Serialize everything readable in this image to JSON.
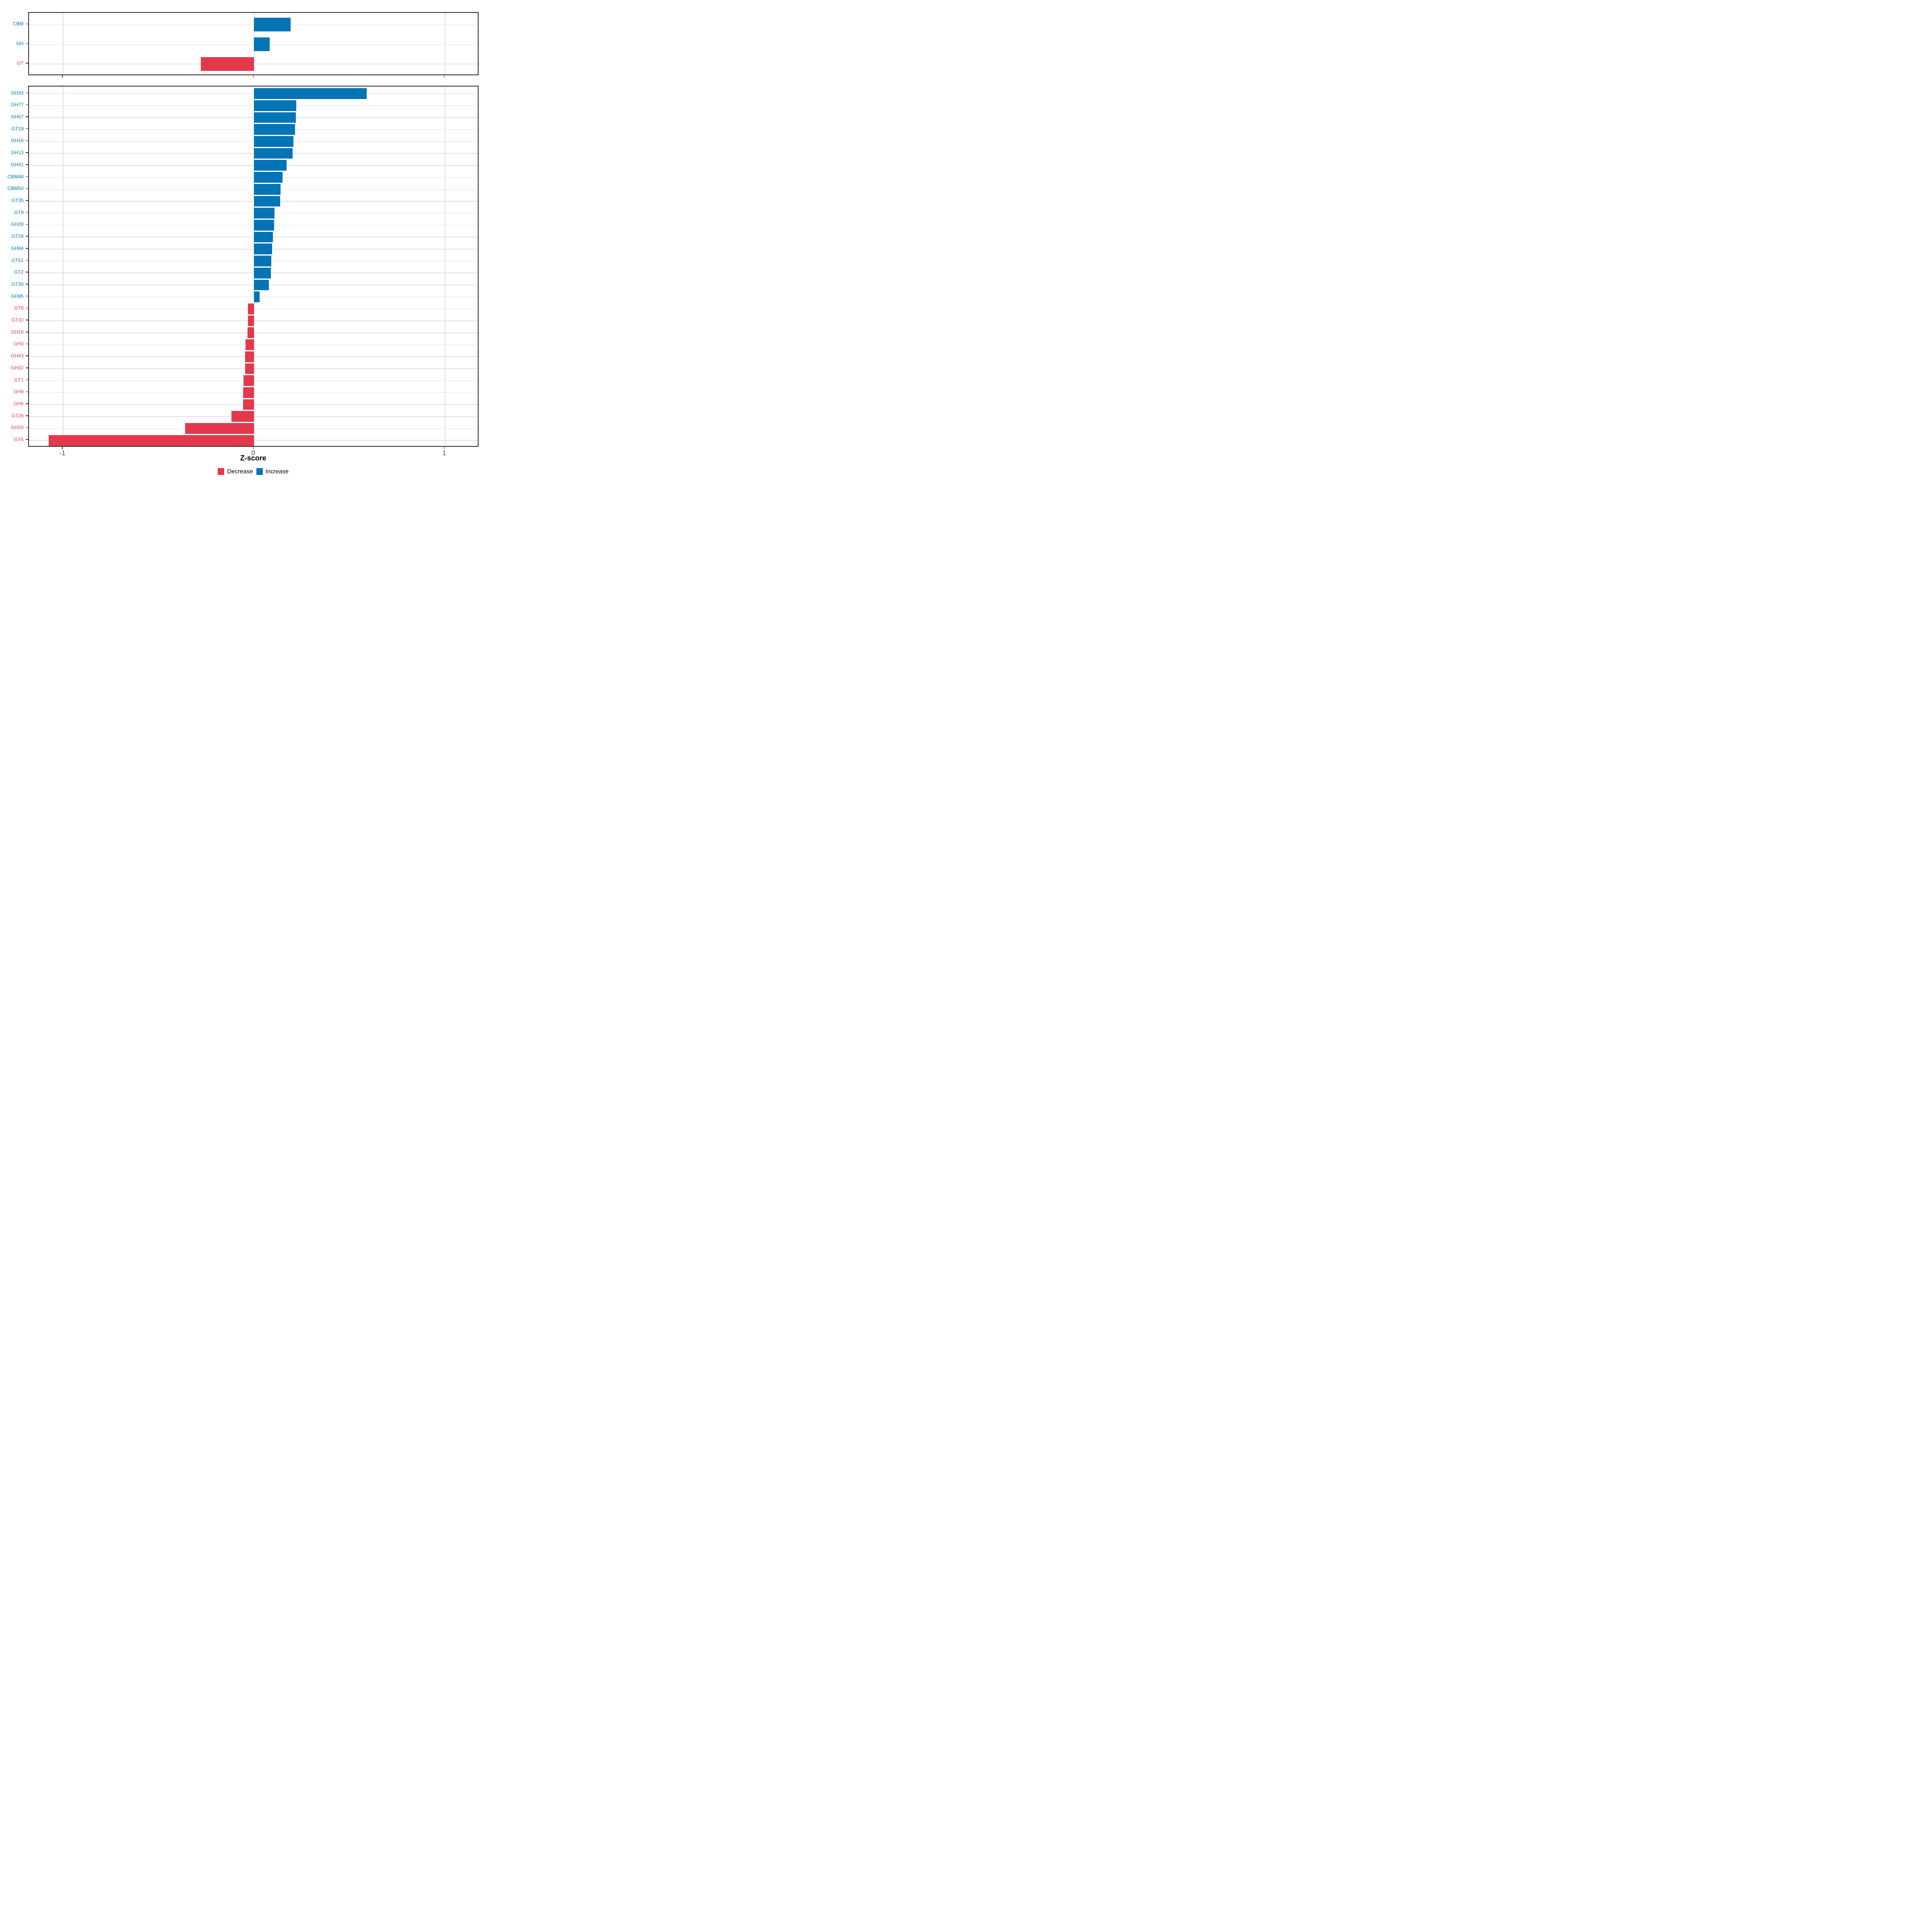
{
  "figure": {
    "background": "#FFFFFF"
  },
  "colors": {
    "increase": "#0374B5",
    "decrease": "#E5384A",
    "gridline": "#E0E0E0",
    "axis_text": "#4D4D4D",
    "axis_title": "#000000",
    "panel_border": "#2A2A2A",
    "tick": "#333333"
  },
  "axis": {
    "title": "Z-score",
    "tick_labels": [
      "-1",
      "0",
      "1"
    ],
    "tick_values": [
      -1,
      0,
      1
    ],
    "xlim": [
      -1.18,
      1.18
    ]
  },
  "legend": {
    "items": [
      {
        "label": "Decrease",
        "key": "decrease"
      },
      {
        "label": "Increase",
        "key": "increase"
      }
    ]
  },
  "chart_data": [
    {
      "type": "bar",
      "orientation": "horizontal",
      "panel": "summary",
      "title": "",
      "xlabel": "",
      "ylabel": "",
      "grid": true,
      "legend_position": "bottom",
      "xlim": [
        -1.18,
        1.18
      ],
      "xticks": [
        -1,
        0,
        1
      ],
      "categories": [
        "CBM",
        "GH",
        "GT"
      ],
      "values": [
        0.191,
        0.082,
        -0.278
      ],
      "directions": [
        "increase",
        "increase",
        "decrease"
      ]
    },
    {
      "type": "bar",
      "orientation": "horizontal",
      "panel": "families",
      "title": "",
      "xlabel": "Z-score",
      "ylabel": "",
      "grid": true,
      "legend_position": "bottom",
      "xlim": [
        -1.18,
        1.18
      ],
      "xticks": [
        -1,
        0,
        1
      ],
      "categories": [
        "GH33",
        "GH77",
        "GH57",
        "GT19",
        "GH16",
        "GH13",
        "GH31",
        "CBM48",
        "CBM50",
        "GT35",
        "GT9",
        "GH29",
        "GT28",
        "GH84",
        "GT51",
        "GT2",
        "GT30",
        "GH95",
        "GT8",
        "GT10",
        "GH18",
        "GH3",
        "GH43",
        "GH32",
        "GT1",
        "GH9",
        "GH5",
        "GT26",
        "GH20",
        "GT4"
      ],
      "values": [
        0.59,
        0.221,
        0.219,
        0.214,
        0.207,
        0.201,
        0.17,
        0.15,
        0.139,
        0.137,
        0.106,
        0.105,
        0.099,
        0.094,
        0.09,
        0.087,
        0.078,
        0.028,
        -0.033,
        -0.033,
        -0.034,
        -0.045,
        -0.047,
        -0.047,
        -0.056,
        -0.057,
        -0.058,
        -0.118,
        -0.36,
        -1.075
      ],
      "directions": [
        "increase",
        "increase",
        "increase",
        "increase",
        "increase",
        "increase",
        "increase",
        "increase",
        "increase",
        "increase",
        "increase",
        "increase",
        "increase",
        "increase",
        "increase",
        "increase",
        "increase",
        "increase",
        "decrease",
        "decrease",
        "decrease",
        "decrease",
        "decrease",
        "decrease",
        "decrease",
        "decrease",
        "decrease",
        "decrease",
        "decrease",
        "decrease"
      ]
    }
  ]
}
